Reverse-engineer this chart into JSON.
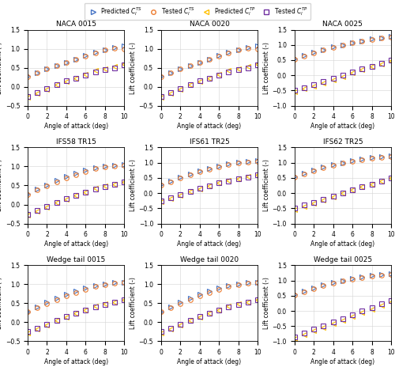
{
  "titles": [
    "NACA 0015",
    "NACA 0020",
    "NACA 0025",
    "IFS58 TR15",
    "IFS61 TR25",
    "IFS62 TR25",
    "Wedge tail 0015",
    "Wedge tail 0020",
    "Wedge tail 0025"
  ],
  "aoa": [
    0,
    1,
    2,
    3,
    4,
    5,
    6,
    7,
    8,
    9,
    10
  ],
  "xlabel": "Angle of attack (deg)",
  "ylabel": "Lift coefficient (-)",
  "color_pred_S": "#4472C4",
  "color_test_S": "#ED7D31",
  "color_pred_P": "#FFC000",
  "color_test_P": "#7030A0",
  "plots": [
    {
      "pred_S": [
        0.28,
        0.37,
        0.46,
        0.55,
        0.64,
        0.73,
        0.82,
        0.91,
        0.98,
        1.04,
        1.07
      ],
      "test_S": [
        0.27,
        0.36,
        0.46,
        0.55,
        0.63,
        0.72,
        0.81,
        0.89,
        0.96,
        1.01,
        1.0
      ],
      "pred_P": [
        -0.28,
        -0.18,
        -0.08,
        0.05,
        0.13,
        0.22,
        0.32,
        0.42,
        0.47,
        0.53,
        0.6
      ],
      "test_P": [
        -0.25,
        -0.15,
        -0.05,
        0.05,
        0.15,
        0.22,
        0.3,
        0.38,
        0.44,
        0.5,
        0.58
      ],
      "ylim": [
        -0.5,
        1.5
      ],
      "yticks": [
        -0.5,
        0.0,
        0.5,
        1.0,
        1.5
      ]
    },
    {
      "pred_S": [
        0.28,
        0.37,
        0.46,
        0.55,
        0.64,
        0.73,
        0.82,
        0.91,
        0.98,
        1.04,
        1.07
      ],
      "test_S": [
        0.27,
        0.36,
        0.46,
        0.55,
        0.63,
        0.72,
        0.81,
        0.89,
        0.96,
        1.01,
        1.0
      ],
      "pred_P": [
        -0.28,
        -0.18,
        -0.08,
        0.05,
        0.13,
        0.22,
        0.32,
        0.42,
        0.47,
        0.53,
        0.6
      ],
      "test_P": [
        -0.25,
        -0.15,
        -0.05,
        0.05,
        0.15,
        0.22,
        0.3,
        0.38,
        0.44,
        0.5,
        0.58
      ],
      "ylim": [
        -0.5,
        1.5
      ],
      "yticks": [
        -0.5,
        0.0,
        0.5,
        1.0,
        1.5
      ]
    },
    {
      "pred_S": [
        0.55,
        0.65,
        0.75,
        0.85,
        0.93,
        1.0,
        1.07,
        1.13,
        1.19,
        1.24,
        1.28
      ],
      "test_S": [
        0.53,
        0.63,
        0.73,
        0.83,
        0.91,
        0.99,
        1.06,
        1.12,
        1.17,
        1.22,
        1.26
      ],
      "pred_P": [
        -0.55,
        -0.45,
        -0.35,
        -0.25,
        -0.15,
        -0.05,
        0.07,
        0.18,
        0.28,
        0.38,
        0.48
      ],
      "test_P": [
        -0.5,
        -0.4,
        -0.3,
        -0.2,
        -0.1,
        0.0,
        0.1,
        0.2,
        0.3,
        0.4,
        0.5
      ],
      "ylim": [
        -1.0,
        1.5
      ],
      "yticks": [
        -1.0,
        -0.5,
        0.0,
        0.5,
        1.0,
        1.5
      ]
    },
    {
      "pred_S": [
        0.28,
        0.4,
        0.52,
        0.63,
        0.73,
        0.82,
        0.9,
        0.97,
        1.01,
        1.04,
        1.06
      ],
      "test_S": [
        0.27,
        0.38,
        0.49,
        0.6,
        0.7,
        0.79,
        0.87,
        0.94,
        0.99,
        1.02,
        1.04
      ],
      "pred_P": [
        -0.28,
        -0.18,
        -0.07,
        0.05,
        0.14,
        0.24,
        0.33,
        0.42,
        0.48,
        0.54,
        0.6
      ],
      "test_P": [
        -0.25,
        -0.15,
        -0.05,
        0.05,
        0.15,
        0.24,
        0.33,
        0.4,
        0.47,
        0.53,
        0.59
      ],
      "ylim": [
        -0.5,
        1.5
      ],
      "yticks": [
        -0.5,
        0.0,
        0.5,
        1.0,
        1.5
      ]
    },
    {
      "pred_S": [
        0.28,
        0.4,
        0.52,
        0.63,
        0.73,
        0.82,
        0.9,
        0.97,
        1.01,
        1.04,
        1.06
      ],
      "test_S": [
        0.27,
        0.38,
        0.49,
        0.6,
        0.7,
        0.79,
        0.87,
        0.94,
        0.99,
        1.02,
        1.04
      ],
      "pred_P": [
        -0.28,
        -0.18,
        -0.07,
        0.05,
        0.14,
        0.24,
        0.33,
        0.42,
        0.48,
        0.54,
        0.6
      ],
      "test_P": [
        -0.25,
        -0.15,
        -0.05,
        0.05,
        0.15,
        0.24,
        0.33,
        0.4,
        0.47,
        0.53,
        0.59
      ],
      "ylim": [
        -1.0,
        1.5
      ],
      "yticks": [
        -1.0,
        -0.5,
        0.0,
        0.5,
        1.0,
        1.5
      ]
    },
    {
      "pred_S": [
        0.55,
        0.65,
        0.75,
        0.85,
        0.93,
        1.0,
        1.07,
        1.13,
        1.17,
        1.2,
        1.23
      ],
      "test_S": [
        0.53,
        0.63,
        0.73,
        0.83,
        0.91,
        0.99,
        1.05,
        1.1,
        1.15,
        1.18,
        1.21
      ],
      "pred_P": [
        -0.55,
        -0.44,
        -0.33,
        -0.22,
        -0.12,
        -0.01,
        0.1,
        0.2,
        0.3,
        0.4,
        0.5
      ],
      "test_P": [
        -0.5,
        -0.4,
        -0.3,
        -0.2,
        -0.1,
        0.0,
        0.1,
        0.2,
        0.3,
        0.4,
        0.5
      ],
      "ylim": [
        -1.0,
        1.5
      ],
      "yticks": [
        -1.0,
        -0.5,
        0.0,
        0.5,
        1.0,
        1.5
      ]
    },
    {
      "pred_S": [
        0.28,
        0.4,
        0.52,
        0.63,
        0.73,
        0.82,
        0.9,
        0.97,
        1.01,
        1.04,
        1.06
      ],
      "test_S": [
        0.27,
        0.38,
        0.49,
        0.6,
        0.7,
        0.79,
        0.87,
        0.94,
        0.99,
        1.02,
        1.04
      ],
      "pred_P": [
        -0.28,
        -0.18,
        -0.07,
        0.05,
        0.14,
        0.24,
        0.33,
        0.42,
        0.48,
        0.54,
        0.6
      ],
      "test_P": [
        -0.25,
        -0.15,
        -0.05,
        0.05,
        0.15,
        0.24,
        0.33,
        0.4,
        0.47,
        0.53,
        0.59
      ],
      "ylim": [
        -0.5,
        1.5
      ],
      "yticks": [
        -0.5,
        0.0,
        0.5,
        1.0,
        1.5
      ]
    },
    {
      "pred_S": [
        0.28,
        0.4,
        0.52,
        0.63,
        0.73,
        0.82,
        0.9,
        0.97,
        1.01,
        1.04,
        1.06
      ],
      "test_S": [
        0.27,
        0.38,
        0.49,
        0.6,
        0.7,
        0.79,
        0.87,
        0.94,
        0.99,
        1.02,
        1.04
      ],
      "pred_P": [
        -0.28,
        -0.18,
        -0.07,
        0.05,
        0.14,
        0.24,
        0.33,
        0.42,
        0.48,
        0.54,
        0.6
      ],
      "test_P": [
        -0.25,
        -0.15,
        -0.05,
        0.05,
        0.15,
        0.24,
        0.33,
        0.4,
        0.47,
        0.53,
        0.59
      ],
      "ylim": [
        -0.5,
        1.5
      ],
      "yticks": [
        -0.5,
        0.0,
        0.5,
        1.0,
        1.5
      ]
    },
    {
      "pred_S": [
        0.55,
        0.65,
        0.75,
        0.85,
        0.93,
        1.0,
        1.07,
        1.13,
        1.17,
        1.2,
        1.23
      ],
      "test_S": [
        0.53,
        0.63,
        0.73,
        0.83,
        0.91,
        0.99,
        1.05,
        1.1,
        1.15,
        1.18,
        1.21
      ],
      "pred_P": [
        -0.9,
        -0.78,
        -0.66,
        -0.54,
        -0.42,
        -0.3,
        -0.18,
        -0.06,
        0.06,
        0.18,
        0.3
      ],
      "test_P": [
        -0.85,
        -0.73,
        -0.61,
        -0.49,
        -0.37,
        -0.25,
        -0.13,
        -0.01,
        0.11,
        0.23,
        0.35
      ],
      "ylim": [
        -1.0,
        1.5
      ],
      "yticks": [
        -1.0,
        -0.5,
        0.0,
        0.5,
        1.0,
        1.5
      ]
    }
  ]
}
